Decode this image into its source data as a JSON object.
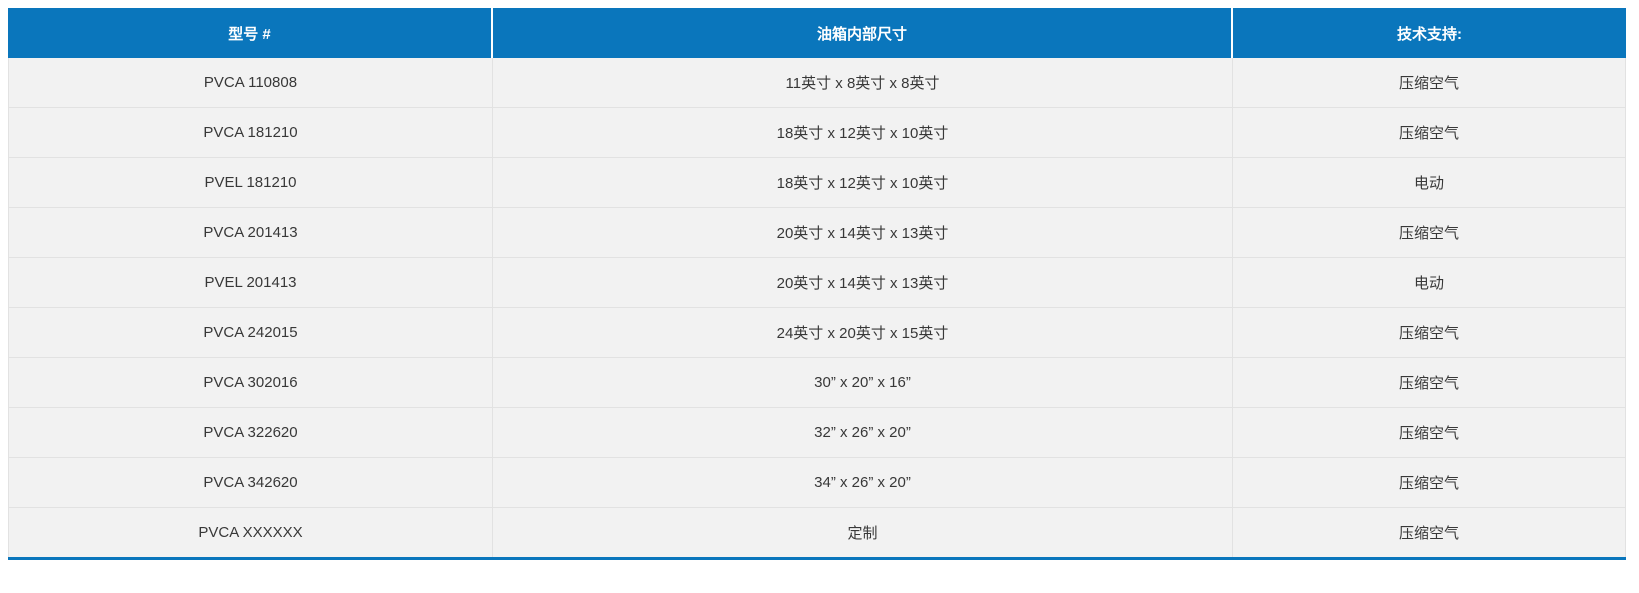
{
  "spec_table": {
    "headers": [
      "型号 #",
      "油箱内部尺寸",
      "技术支持:"
    ],
    "rows": [
      {
        "model": "PVCA 110808",
        "dimensions": "11英寸 x 8英寸 x 8英寸",
        "support": "压缩空气"
      },
      {
        "model": "PVCA 181210",
        "dimensions": "18英寸 x 12英寸 x 10英寸",
        "support": "压缩空气"
      },
      {
        "model": "PVEL 181210",
        "dimensions": "18英寸 x 12英寸 x 10英寸",
        "support": "电动"
      },
      {
        "model": "PVCA 201413",
        "dimensions": "20英寸 x 14英寸 x 13英寸",
        "support": "压缩空气"
      },
      {
        "model": "PVEL 201413",
        "dimensions": "20英寸 x 14英寸 x 13英寸",
        "support": "电动"
      },
      {
        "model": "PVCA 242015",
        "dimensions": "24英寸 x 20英寸 x 15英寸",
        "support": "压缩空气"
      },
      {
        "model": "PVCA 302016",
        "dimensions": "30” x 20” x 16”",
        "support": "压缩空气"
      },
      {
        "model": "PVCA 322620",
        "dimensions": "32” x 26” x 20”",
        "support": "压缩空气"
      },
      {
        "model": "PVCA 342620",
        "dimensions": "34” x 26” x 20”",
        "support": "压缩空气"
      },
      {
        "model": "PVCA XXXXXX",
        "dimensions": "定制",
        "support": "压缩空气"
      }
    ],
    "colors": {
      "header_bg": "#0a76bc",
      "header_text": "#ffffff",
      "row_bg": "#f2f2f2",
      "border": "#e2e2e2",
      "cell_text": "#383838",
      "bottom_rule": "#0a76bc"
    }
  }
}
